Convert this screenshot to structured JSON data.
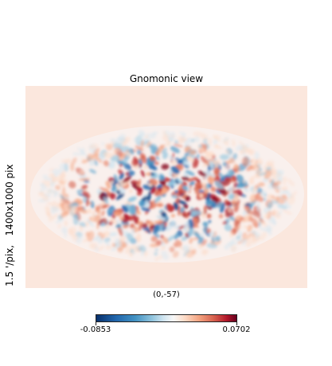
{
  "title": "Gnomonic view",
  "ylabel": "1.5 '/pix,   1400x1000 pix",
  "xlabel": "(0,-57)",
  "colorbar": {
    "min_label": "-0.0853",
    "max_label": "0.0702",
    "colormap": "RdBu_r"
  },
  "colors": {
    "background": "#fbe7dd",
    "blue": "#2166ac",
    "red": "#b2182b"
  }
}
